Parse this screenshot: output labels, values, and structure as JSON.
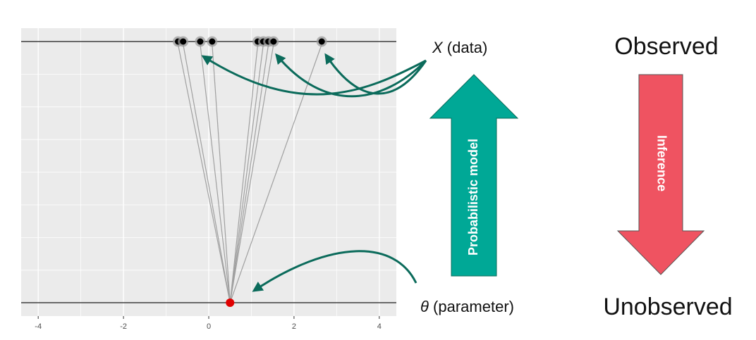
{
  "diagram": {
    "labels": {
      "data_symbol": "X",
      "data_suffix": " (data)",
      "param_symbol": "θ",
      "param_suffix": " (parameter)",
      "observed": "Observed",
      "unobserved": "Unobserved",
      "model_arrow": "Probabilistic model",
      "inference_arrow": "Inference"
    },
    "colors": {
      "panel_bg": "#EBEBEB",
      "model_arrow": "#00A896",
      "inference_arrow": "#EF5361",
      "curve_arrows": "#0B6B5B",
      "parameter_point": "#E00000",
      "data_point": "#000000",
      "link_lines": "#A0A0A0"
    },
    "icons": [
      "up-arrow-icon",
      "down-arrow-icon"
    ]
  },
  "chart_data": {
    "type": "scatter",
    "xlim": [
      -4.4,
      4.4
    ],
    "x_ticks": [
      "-4",
      "-2",
      "0",
      "2",
      "4"
    ],
    "x_tick_values": [
      -4,
      -2,
      0,
      2,
      4
    ],
    "grid": true,
    "parameter_value": 0.5,
    "data_values": [
      -0.72,
      -0.6,
      -0.2,
      0.08,
      1.15,
      1.28,
      1.4,
      1.52,
      2.65
    ]
  }
}
